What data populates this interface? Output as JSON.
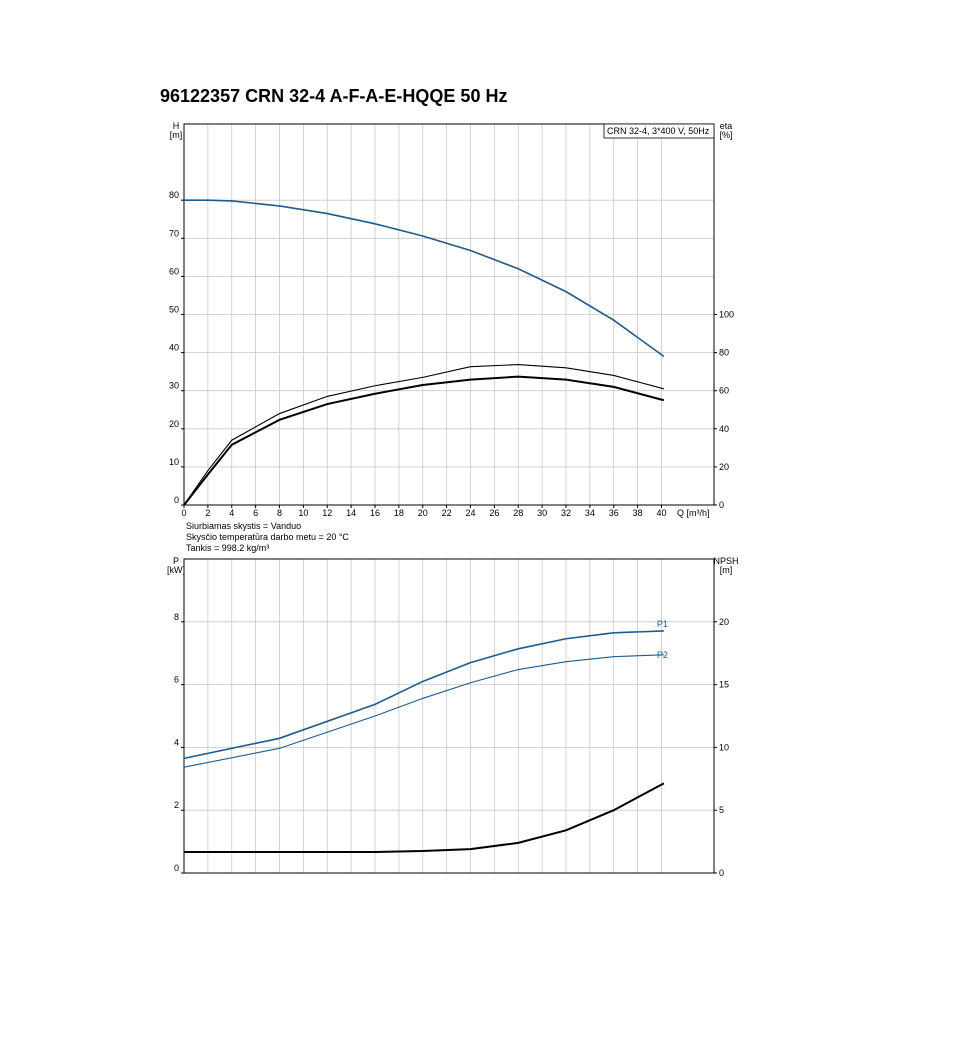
{
  "title": "96122357 CRN 32-4 A-F-A-E-HQQE 50 Hz",
  "chart_data": [
    {
      "type": "line",
      "annotation": "CRN 32-4, 3*400 V, 50Hz",
      "ylabel": [
        "H",
        "[m]"
      ],
      "y2label": [
        "eta",
        "[%]"
      ],
      "xlabel": "Q [m³/h]",
      "x": [
        0,
        2,
        4,
        8,
        12,
        16,
        20,
        24,
        28,
        32,
        36,
        40.2
      ],
      "xlim": [
        0,
        44.4
      ],
      "xticks": [
        0,
        2,
        4,
        6,
        8,
        10,
        12,
        14,
        16,
        18,
        20,
        22,
        24,
        26,
        28,
        30,
        32,
        34,
        36,
        38,
        40
      ],
      "ylim": [
        0,
        100
      ],
      "yticks": [
        0,
        10,
        20,
        30,
        40,
        50,
        60,
        70,
        80
      ],
      "y2lim": [
        0,
        200
      ],
      "y2ticks": [
        0,
        20,
        40,
        60,
        80,
        100
      ],
      "grid": true,
      "series": [
        {
          "color": "#1f5a8f",
          "width": 1.6,
          "values": [
            80,
            80,
            79.8,
            78.5,
            76.5,
            73.8,
            70.6,
            66.8,
            62,
            56,
            48.5,
            39
          ]
        },
        {
          "color": "#000000",
          "width": 1.1,
          "axis": "y2",
          "values": [
            0,
            18,
            34,
            48,
            57,
            62.6,
            67,
            72.6,
            73.7,
            72,
            68,
            61
          ]
        },
        {
          "color": "#000000",
          "width": 2,
          "axis": "y2",
          "values": [
            0,
            16,
            31.6,
            44.7,
            53,
            58.4,
            63,
            65.8,
            67.4,
            65.8,
            62,
            55
          ]
        }
      ],
      "notes": [
        "Siurbiamas skystis = Vanduo",
        "Skysčio temperatūra darbo metu = 20 °C",
        "Tankis = 998.2 kg/m³"
      ]
    },
    {
      "type": "line",
      "ylabel": [
        "P",
        "[kW]"
      ],
      "y2label": [
        "NPSH",
        "[m]"
      ],
      "x": [
        0,
        8,
        16,
        20,
        24,
        28,
        32,
        36,
        40.2
      ],
      "xlim": [
        0,
        44.4
      ],
      "ylim": [
        0,
        10
      ],
      "yticks": [
        0,
        2,
        4,
        6,
        8
      ],
      "y2lim": [
        0,
        25
      ],
      "y2ticks": [
        0,
        5,
        10,
        15,
        20
      ],
      "grid": true,
      "series": [
        {
          "name": "P1",
          "color": "#1f5a8f",
          "width": 1.6,
          "values": [
            3.65,
            4.29,
            5.37,
            6.1,
            6.7,
            7.14,
            7.46,
            7.65,
            7.71
          ]
        },
        {
          "name": "P2",
          "color": "#1f5a8f",
          "width": 1.1,
          "values": [
            3.37,
            3.97,
            5.0,
            5.56,
            6.06,
            6.48,
            6.73,
            6.89,
            6.95
          ]
        },
        {
          "color": "#000000",
          "width": 2,
          "axis": "y2",
          "values": [
            1.67,
            1.67,
            1.67,
            1.75,
            1.9,
            2.4,
            3.4,
            5.0,
            7.14
          ]
        }
      ]
    }
  ]
}
